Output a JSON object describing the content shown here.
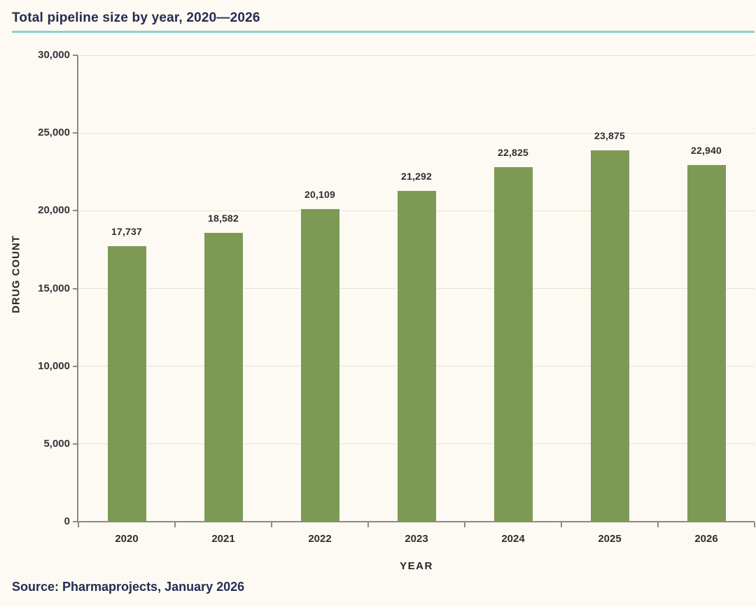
{
  "chart_data": {
    "type": "bar",
    "title": "Total pipeline size by year, 2020—2026",
    "xlabel": "YEAR",
    "ylabel": "DRUG COUNT",
    "categories": [
      "2020",
      "2021",
      "2022",
      "2023",
      "2024",
      "2025",
      "2026"
    ],
    "values": [
      17737,
      18582,
      20109,
      21292,
      22825,
      23875,
      22940
    ],
    "value_labels": [
      "17,737",
      "18,582",
      "20,109",
      "21,292",
      "22,825",
      "23,875",
      "22,940"
    ],
    "ylim": [
      0,
      30000
    ],
    "y_ticks": [
      {
        "value": 0,
        "label": "0"
      },
      {
        "value": 5000,
        "label": "5,000"
      },
      {
        "value": 10000,
        "label": "10,000"
      },
      {
        "value": 15000,
        "label": "15,000"
      },
      {
        "value": 20000,
        "label": "20,000"
      },
      {
        "value": 25000,
        "label": "25,000"
      },
      {
        "value": 30000,
        "label": "30,000"
      }
    ],
    "grid": "horizontal",
    "legend": "none",
    "colors": {
      "bar": "#7D9A55",
      "accent_rule": "#8FCFC9",
      "title_text": "#242C52",
      "axis_line": "#8E8A80",
      "gridline": "#E6E3DA",
      "label_text": "#2E2E33",
      "background": "#FCFAF2"
    }
  },
  "source": "Source: Pharmaprojects, January 2026"
}
